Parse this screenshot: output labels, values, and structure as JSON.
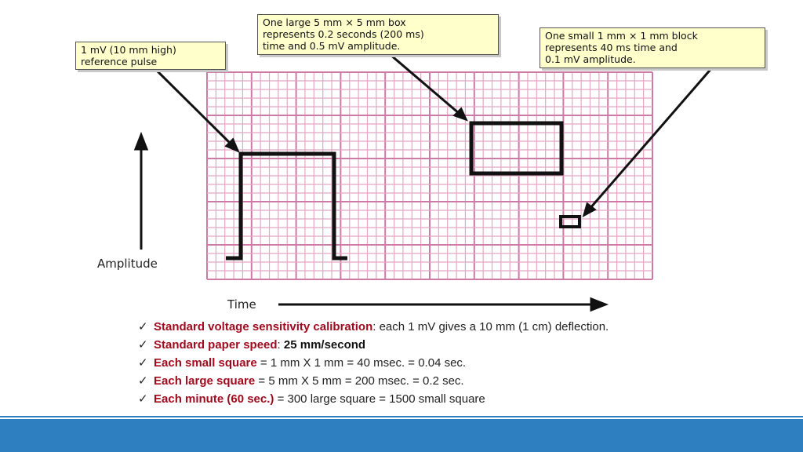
{
  "callouts": {
    "reference_pulse": "1 mV (10 mm high)\nreference pulse",
    "large_box": "One large 5 mm × 5 mm box\nrepresents 0.2 seconds (200 ms)\ntime and 0.5 mV amplitude.",
    "small_block": "One small 1 mm × 1 mm block\nrepresents 40 ms time and\n0.1 mV amplitude."
  },
  "axes": {
    "y_label": "Amplitude",
    "x_label": "Time"
  },
  "bullets": [
    {
      "term": "Standard voltage sensitivity calibration",
      "sep": ":",
      "text": " each 1 mV gives a 10 mm (1 cm) deflection.",
      "bold_text": ""
    },
    {
      "term": "Standard paper speed",
      "sep": ": ",
      "text": "",
      "bold_text": "25 mm/second"
    },
    {
      "term": "Each small square",
      "sep": "",
      "text": " = 1 mm X 1 mm = 40 msec. = 0.04 sec.",
      "bold_text": ""
    },
    {
      "term": "Each large square",
      "sep": "",
      "text": " = 5 mm X 5 mm = 200 msec. = 0.2 sec.",
      "bold_text": ""
    },
    {
      "term": "Each minute (60 sec.)",
      "sep": "",
      "text": " = 300 large square = 1500 small square",
      "bold_text": ""
    }
  ],
  "checkmark": "✓",
  "colors": {
    "grid_minor": "#e3a8c4",
    "grid_major": "#cd7aa6",
    "term": "#a00a1e",
    "footer": "#2e7fc0",
    "callout_bg": "#ffffcc"
  }
}
